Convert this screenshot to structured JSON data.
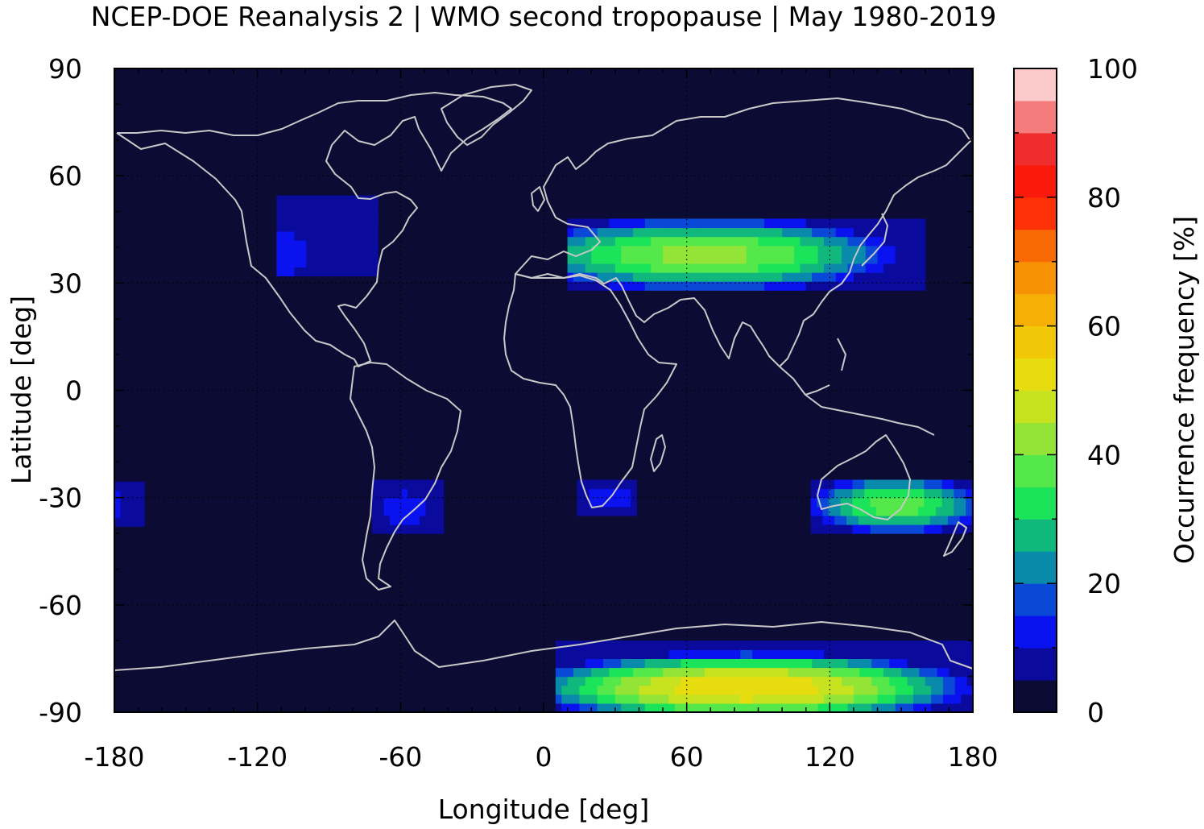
{
  "chart_data": {
    "type": "heatmap",
    "title": "NCEP-DOE Reanalysis 2 | WMO second tropopause | May 1980-2019",
    "xlabel": "Longitude [deg]",
    "ylabel": "Latitude [deg]",
    "xlim": [
      -180,
      180
    ],
    "ylim": [
      -90,
      90
    ],
    "xticks": [
      -180,
      -120,
      -60,
      0,
      60,
      120,
      180
    ],
    "yticks": [
      90,
      60,
      30,
      0,
      -30,
      -60,
      -90
    ],
    "grid": true,
    "overlay": "coastlines",
    "colorbar": {
      "label": "Occurrence frequency [%]",
      "min": 0,
      "max": 100,
      "step": 5,
      "ticks": [
        0,
        20,
        40,
        60,
        80,
        100
      ],
      "colors": [
        "#0c0b33",
        "#0a0a9c",
        "#0b12f0",
        "#0a48d8",
        "#0a8aaa",
        "#11b87e",
        "#1be45a",
        "#55e84a",
        "#93e437",
        "#c7e31f",
        "#e6dc10",
        "#f0c807",
        "#f5b006",
        "#f79205",
        "#f96a06",
        "#fc3206",
        "#f91a0c",
        "#ef2d2d",
        "#f47c7c",
        "#fccaca"
      ],
      "background": "#0c0b33"
    },
    "regions": [
      {
        "name": "North America",
        "lon": [
          -112,
          -70
        ],
        "lat": [
          32,
          53
        ],
        "peak_lon": -112,
        "peak_lat": 38,
        "peak": 12
      },
      {
        "name": "Eurasian belt",
        "lon": [
          10,
          160
        ],
        "lat": [
          28,
          47
        ],
        "peak_lon": 68,
        "peak_lat": 38,
        "peak": 42
      },
      {
        "name": "South America",
        "lon": [
          -72,
          -42
        ],
        "lat": [
          -40,
          -26
        ],
        "peak_lon": -58,
        "peak_lat": -33,
        "peak": 12
      },
      {
        "name": "Southern Africa",
        "lon": [
          14,
          38
        ],
        "lat": [
          -35,
          -26
        ],
        "peak_lon": 28,
        "peak_lat": -30,
        "peak": 14
      },
      {
        "name": "Australia",
        "lon": [
          112,
          180
        ],
        "lat": [
          -40,
          -25
        ],
        "peak_lon": 148,
        "peak_lat": -32,
        "peak": 38
      },
      {
        "name": "Southern Pacific",
        "lon": [
          -180,
          -168
        ],
        "lat": [
          -38,
          -27
        ],
        "peak_lon": -180,
        "peak_lat": -32,
        "peak": 12
      },
      {
        "name": "Antarctica",
        "lon": [
          5,
          178
        ],
        "lat": [
          -90,
          -72
        ],
        "peak_lon": 85,
        "peak_lat": -83,
        "peak": 55
      }
    ]
  }
}
